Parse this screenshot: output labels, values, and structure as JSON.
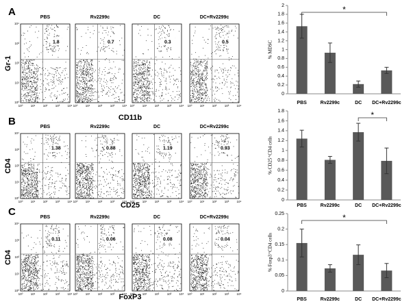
{
  "flow_panels": [
    {
      "label": "A",
      "y_axis": "Gr-1",
      "x_axis": "CD11b",
      "samples": [
        {
          "name": "PBS",
          "value": 1.8
        },
        {
          "name": "Rv2299c",
          "value": 0.7
        },
        {
          "name": "DC",
          "value": 0.3
        },
        {
          "name": "DC+Rv2299c",
          "value": 0.5
        }
      ]
    },
    {
      "label": "B",
      "y_axis": "CD4",
      "x_axis": "CD25",
      "samples": [
        {
          "name": "PBS",
          "value": 1.38
        },
        {
          "name": "Rv2299c",
          "value": 0.88
        },
        {
          "name": "DC",
          "value": 1.19
        },
        {
          "name": "DC+Rv2299c",
          "value": 0.93
        }
      ]
    },
    {
      "label": "C",
      "y_axis": "CD4",
      "x_axis": "FoxP3",
      "samples": [
        {
          "name": "PBS",
          "value": 0.11
        },
        {
          "name": "Rv2299c",
          "value": 0.06
        },
        {
          "name": "DC",
          "value": 0.08
        },
        {
          "name": "DC+Rv2299c",
          "value": 0.04
        }
      ]
    }
  ],
  "flow_ticks": [
    "10⁰",
    "10¹",
    "10²",
    "10³",
    "10⁴"
  ],
  "chart_data": [
    {
      "type": "bar",
      "y_label": "% MDSC",
      "categories": [
        "PBS",
        "Rv2299c",
        "DC",
        "DC+Rv2299c"
      ],
      "values": [
        1.53,
        0.93,
        0.22,
        0.53
      ],
      "errors": [
        0.27,
        0.22,
        0.07,
        0.07
      ],
      "color": "#595959",
      "ylim": [
        0,
        2
      ],
      "yticks": [
        0,
        0.2,
        0.4,
        0.6,
        0.8,
        1,
        1.2,
        1.4,
        1.6,
        1.8,
        2
      ],
      "annotation": "*"
    },
    {
      "type": "bar",
      "y_label": "% CD25⁺CD4 cells",
      "categories": [
        "PBS",
        "Rv2299c",
        "DC",
        "DC+Rv2299c"
      ],
      "values": [
        1.24,
        0.81,
        1.37,
        0.79
      ],
      "errors": [
        0.17,
        0.07,
        0.18,
        0.26
      ],
      "color": "#595959",
      "ylim": [
        0,
        1.8
      ],
      "yticks": [
        0,
        0.2,
        0.4,
        0.6,
        0.8,
        1,
        1.2,
        1.4,
        1.6,
        1.8
      ],
      "annotation": "*"
    },
    {
      "type": "bar",
      "y_label": "% Foxp3⁺CD4 cells",
      "categories": [
        "PBS",
        "Rv2299c",
        "DC",
        "DC+Rv2299c"
      ],
      "values": [
        0.155,
        0.073,
        0.117,
        0.066
      ],
      "errors": [
        0.045,
        0.012,
        0.032,
        0.023
      ],
      "color": "#595959",
      "ylim": [
        0,
        0.25
      ],
      "yticks": [
        0,
        0.05,
        0.1,
        0.15,
        0.2,
        0.25
      ],
      "annotation": "*"
    }
  ]
}
